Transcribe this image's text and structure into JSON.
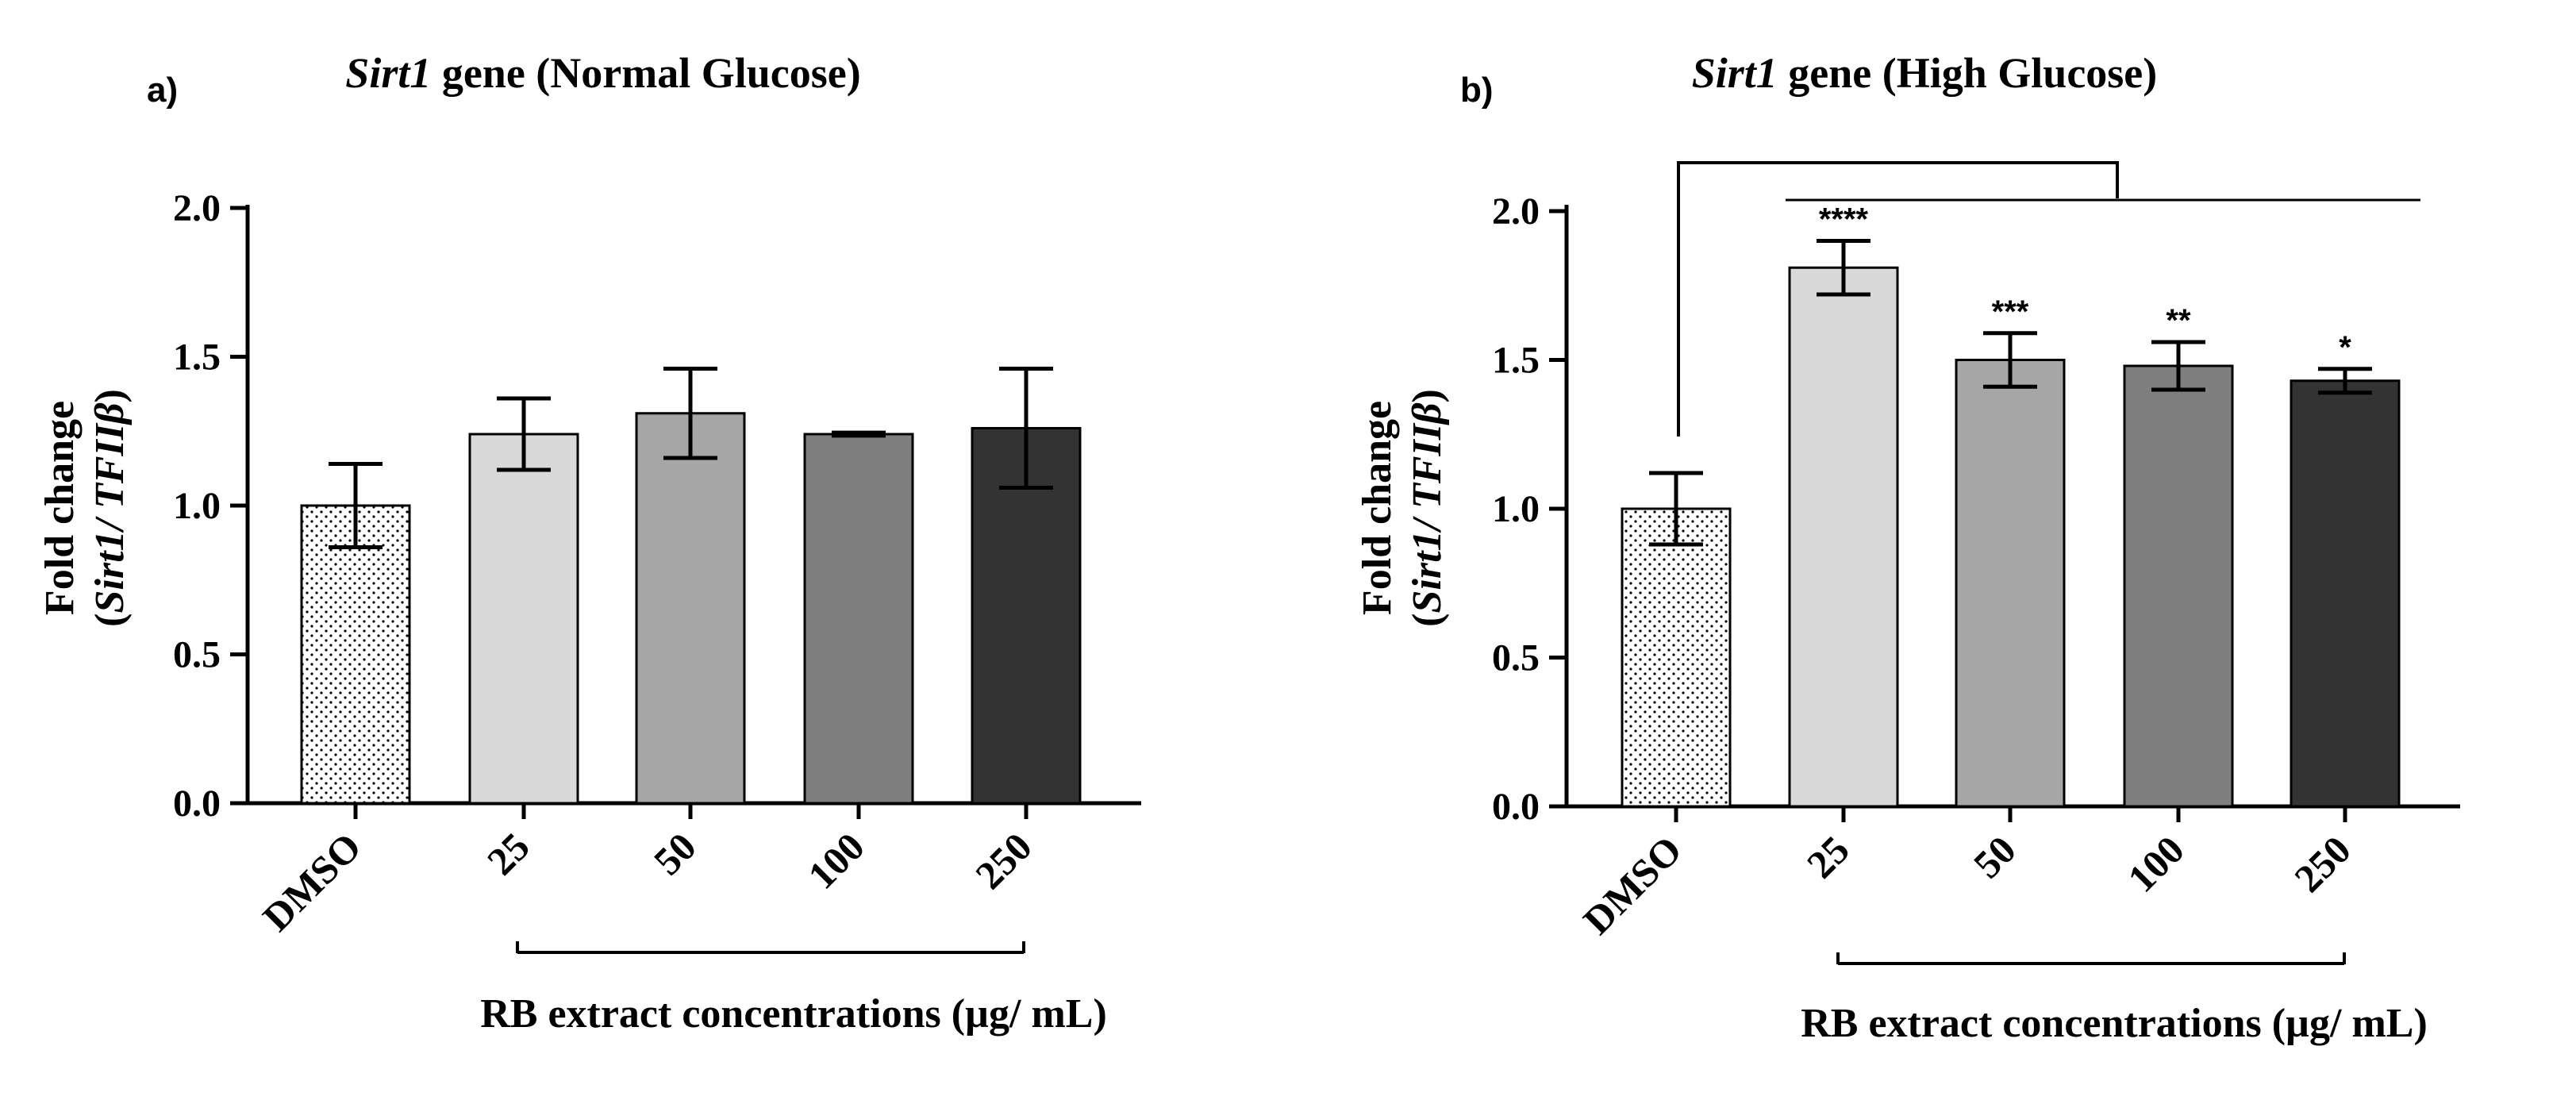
{
  "chart_data": [
    {
      "type": "bar",
      "panel_label": "a)",
      "title": "Sirt1 gene (Normal Glucose)",
      "title_italic": "Sirt1",
      "title_rest": " gene (Normal Glucose)",
      "ylabel_line1": "Fold change",
      "ylabel_line2_open": "(",
      "ylabel_line2_italic": "Sirt1/ TFIIβ",
      "ylabel_line2_close": ")",
      "xlabel": "RB extract concentrations (µg/ mL)",
      "ylim": [
        0,
        2.0
      ],
      "yticks": [
        "0.0",
        "0.5",
        "1.0",
        "1.5",
        "2.0"
      ],
      "ytick_values": [
        0,
        0.5,
        1.0,
        1.5,
        2.0
      ],
      "categories": [
        "DMSO",
        "25",
        "50",
        "100",
        "250"
      ],
      "values": [
        1.0,
        1.24,
        1.31,
        1.24,
        1.26
      ],
      "errors": [
        0.14,
        0.12,
        0.15,
        0.005,
        0.2
      ],
      "colors": [
        "#ffffff",
        "#d9d9d9",
        "#a6a6a6",
        "#7f7f7f",
        "#333333"
      ],
      "patterns": [
        "dots",
        "none",
        "none",
        "none",
        "none"
      ],
      "significance": [
        "",
        "",
        "",
        "",
        ""
      ],
      "legend": "none"
    },
    {
      "type": "bar",
      "panel_label": "b)",
      "title": "Sirt1 gene (High Glucose)",
      "title_italic": "Sirt1",
      "title_rest": " gene (High Glucose)",
      "ylabel_line1": "Fold change",
      "ylabel_line2_open": "(",
      "ylabel_line2_italic": "Sirt1/ TFIIβ",
      "ylabel_line2_close": ")",
      "xlabel": "RB extract concentrations (µg/ mL)",
      "ylim": [
        0,
        2.0
      ],
      "yticks": [
        "0.0",
        "0.5",
        "1.0",
        "1.5",
        "2.0"
      ],
      "ytick_values": [
        0,
        0.5,
        1.0,
        1.5,
        2.0
      ],
      "categories": [
        "DMSO",
        "25",
        "50",
        "100",
        "250"
      ],
      "values": [
        1.0,
        1.81,
        1.5,
        1.48,
        1.43
      ],
      "errors": [
        0.12,
        0.09,
        0.09,
        0.08,
        0.04
      ],
      "colors": [
        "#ffffff",
        "#d9d9d9",
        "#a6a6a6",
        "#7f7f7f",
        "#333333"
      ],
      "patterns": [
        "dots",
        "none",
        "none",
        "none",
        "none"
      ],
      "significance": [
        "",
        "****",
        "***",
        "**",
        "*"
      ],
      "comparison_bracket": "DMSO vs 25–250",
      "legend": "none"
    }
  ]
}
